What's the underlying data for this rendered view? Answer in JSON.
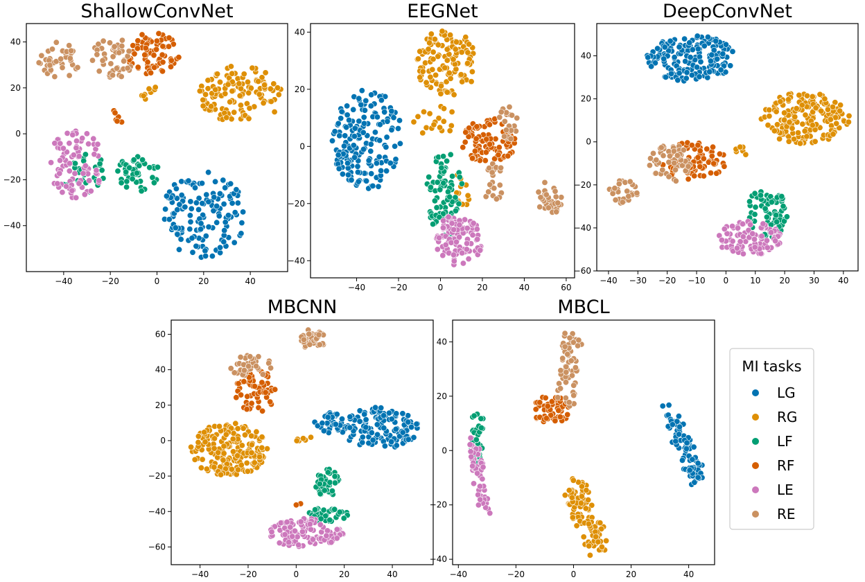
{
  "chart_data": [
    {
      "type": "scatter",
      "title": "ShallowConvNet",
      "xlim": [
        -56,
        56
      ],
      "ylim": [
        -60,
        48
      ],
      "xticks": [
        -40,
        -20,
        0,
        20,
        40
      ],
      "yticks": [
        -40,
        -20,
        0,
        20,
        40
      ],
      "clusters": [
        {
          "class": "LG",
          "shape": "blob",
          "cx": 20,
          "cy": -35,
          "rx": 18,
          "ry": 19,
          "n": 150,
          "seed": 11
        },
        {
          "class": "RG",
          "shape": "blob",
          "cx": 36,
          "cy": 17,
          "rx": 18,
          "ry": 13,
          "n": 120,
          "seed": 12
        },
        {
          "class": "RG",
          "shape": "blob",
          "cx": -3,
          "cy": 18,
          "rx": 4,
          "ry": 4,
          "n": 10,
          "seed": 13
        },
        {
          "class": "LF",
          "shape": "blob",
          "cx": -8,
          "cy": -17,
          "rx": 9,
          "ry": 8,
          "n": 45,
          "seed": 14
        },
        {
          "class": "LF",
          "shape": "blob",
          "cx": -32,
          "cy": -17,
          "rx": 10,
          "ry": 10,
          "n": 30,
          "seed": 15
        },
        {
          "class": "RF",
          "shape": "blob",
          "cx": -2,
          "cy": 35,
          "rx": 12,
          "ry": 9,
          "n": 70,
          "seed": 16
        },
        {
          "class": "RF",
          "shape": "line",
          "x1": -17,
          "y1": 10,
          "x2": -16,
          "y2": 4,
          "n": 6,
          "seed": 17
        },
        {
          "class": "LE",
          "shape": "blob",
          "cx": -35,
          "cy": -13,
          "rx": 12,
          "ry": 15,
          "n": 80,
          "seed": 18
        },
        {
          "class": "RE",
          "shape": "blob",
          "cx": -42,
          "cy": 32,
          "rx": 9,
          "ry": 8,
          "n": 40,
          "seed": 19
        },
        {
          "class": "RE",
          "shape": "blob",
          "cx": -19,
          "cy": 33,
          "rx": 9,
          "ry": 9,
          "n": 45,
          "seed": 20
        }
      ]
    },
    {
      "type": "scatter",
      "title": "EEGNet",
      "xlim": [
        -62,
        64
      ],
      "ylim": [
        -46,
        43
      ],
      "xticks": [
        -40,
        -20,
        0,
        20,
        40,
        60
      ],
      "yticks": [
        -40,
        -20,
        0,
        20,
        40
      ],
      "clusters": [
        {
          "class": "LG",
          "shape": "blob",
          "cx": -35,
          "cy": 2,
          "rx": 17,
          "ry": 18,
          "n": 170,
          "seed": 21
        },
        {
          "class": "RG",
          "shape": "blob",
          "cx": 3,
          "cy": 29,
          "rx": 15,
          "ry": 12,
          "n": 120,
          "seed": 22
        },
        {
          "class": "RG",
          "shape": "blob",
          "cx": -3,
          "cy": 9,
          "rx": 10,
          "ry": 6,
          "n": 18,
          "seed": 23
        },
        {
          "class": "RG",
          "shape": "blob",
          "cx": 10,
          "cy": -16,
          "rx": 4,
          "ry": 7,
          "n": 12,
          "seed": 24
        },
        {
          "class": "LF",
          "shape": "blob",
          "cx": 2,
          "cy": -17,
          "rx": 9,
          "ry": 15,
          "n": 80,
          "seed": 25
        },
        {
          "class": "RF",
          "shape": "blob",
          "cx": 23,
          "cy": 2,
          "rx": 13,
          "ry": 8,
          "n": 85,
          "seed": 26
        },
        {
          "class": "LE",
          "shape": "blob",
          "cx": 8,
          "cy": -33,
          "rx": 12,
          "ry": 9,
          "n": 110,
          "seed": 27
        },
        {
          "class": "RE",
          "shape": "blob",
          "cx": 32,
          "cy": 8,
          "rx": 5,
          "ry": 6,
          "n": 22,
          "seed": 28
        },
        {
          "class": "RE",
          "shape": "blob",
          "cx": 25,
          "cy": -12,
          "rx": 5,
          "ry": 10,
          "n": 22,
          "seed": 29
        },
        {
          "class": "RE",
          "shape": "blob",
          "cx": 52,
          "cy": -18,
          "rx": 6,
          "ry": 6,
          "n": 35,
          "seed": 30
        }
      ]
    },
    {
      "type": "scatter",
      "title": "DeepConvNet",
      "xlim": [
        -44,
        45
      ],
      "ylim": [
        -60,
        55
      ],
      "xticks": [
        -40,
        -30,
        -20,
        -10,
        0,
        10,
        20,
        30,
        40
      ],
      "yticks": [
        -60,
        -40,
        -20,
        0,
        20,
        40
      ],
      "clusters": [
        {
          "class": "LG",
          "shape": "blob",
          "cx": -12,
          "cy": 39,
          "rx": 15,
          "ry": 11,
          "n": 160,
          "seed": 31
        },
        {
          "class": "RG",
          "shape": "blob",
          "cx": 27,
          "cy": 11,
          "rx": 15,
          "ry": 12,
          "n": 170,
          "seed": 32
        },
        {
          "class": "RG",
          "shape": "blob",
          "cx": 6,
          "cy": -4,
          "rx": 3,
          "ry": 2,
          "n": 6,
          "seed": 33
        },
        {
          "class": "LF",
          "shape": "blob",
          "cx": 14,
          "cy": -33,
          "rx": 7,
          "ry": 12,
          "n": 70,
          "seed": 34
        },
        {
          "class": "RF",
          "shape": "blob",
          "cx": -11,
          "cy": -9,
          "rx": 11,
          "ry": 9,
          "n": 80,
          "seed": 35
        },
        {
          "class": "LE",
          "shape": "blob",
          "cx": 8,
          "cy": -45,
          "rx": 11,
          "ry": 8,
          "n": 90,
          "seed": 36
        },
        {
          "class": "RE",
          "shape": "blob",
          "cx": -19,
          "cy": -10,
          "rx": 7,
          "ry": 9,
          "n": 50,
          "seed": 37
        },
        {
          "class": "RE",
          "shape": "blob",
          "cx": -35,
          "cy": -23,
          "rx": 5,
          "ry": 6,
          "n": 30,
          "seed": 38
        }
      ]
    },
    {
      "type": "scatter",
      "title": "MBCNN",
      "xlim": [
        -52,
        57
      ],
      "ylim": [
        -70,
        68
      ],
      "xticks": [
        -40,
        -20,
        0,
        20,
        40
      ],
      "yticks": [
        -60,
        -40,
        -20,
        0,
        20,
        40,
        60
      ],
      "clusters": [
        {
          "class": "LG",
          "shape": "blob",
          "cx": 35,
          "cy": 7,
          "rx": 16,
          "ry": 12,
          "n": 130,
          "seed": 41
        },
        {
          "class": "LG",
          "shape": "blob",
          "cx": 14,
          "cy": 10,
          "rx": 7,
          "ry": 6,
          "n": 30,
          "seed": 42
        },
        {
          "class": "RG",
          "shape": "blob",
          "cx": -28,
          "cy": -5,
          "rx": 16,
          "ry": 15,
          "n": 190,
          "seed": 43
        },
        {
          "class": "RG",
          "shape": "blob",
          "cx": 3,
          "cy": 1,
          "rx": 4,
          "ry": 2,
          "n": 6,
          "seed": 44
        },
        {
          "class": "LF",
          "shape": "blob",
          "cx": 13,
          "cy": -24,
          "rx": 5,
          "ry": 8,
          "n": 40,
          "seed": 45
        },
        {
          "class": "LF",
          "shape": "blob",
          "cx": 13,
          "cy": -42,
          "rx": 9,
          "ry": 4,
          "n": 35,
          "seed": 46
        },
        {
          "class": "RF",
          "shape": "blob",
          "cx": -17,
          "cy": 28,
          "rx": 9,
          "ry": 12,
          "n": 65,
          "seed": 47
        },
        {
          "class": "RF",
          "shape": "line",
          "x1": 0,
          "y1": -38,
          "x2": 2,
          "y2": -34,
          "n": 3,
          "seed": 48
        },
        {
          "class": "LE",
          "shape": "blob",
          "cx": 4,
          "cy": -52,
          "rx": 16,
          "ry": 8,
          "n": 110,
          "seed": 49
        },
        {
          "class": "RE",
          "shape": "blob",
          "cx": -19,
          "cy": 42,
          "rx": 9,
          "ry": 6,
          "n": 40,
          "seed": 50
        },
        {
          "class": "RE",
          "shape": "blob",
          "cx": 7,
          "cy": 57,
          "rx": 5,
          "ry": 6,
          "n": 40,
          "seed": 51
        }
      ]
    },
    {
      "type": "scatter",
      "title": "MBCL",
      "xlim": [
        -42,
        49
      ],
      "ylim": [
        -42,
        48
      ],
      "xticks": [
        -40,
        -20,
        0,
        20,
        40
      ],
      "yticks": [
        -40,
        -20,
        0,
        20,
        40
      ],
      "clusters": [
        {
          "class": "LG",
          "shape": "line",
          "x1": 33,
          "y1": 14,
          "x2": 44,
          "y2": -12,
          "n": 80,
          "seed": 61,
          "spread": 3
        },
        {
          "class": "RG",
          "shape": "line",
          "x1": 0,
          "y1": -12,
          "x2": 8,
          "y2": -35,
          "n": 100,
          "seed": 62,
          "spread": 4
        },
        {
          "class": "LF",
          "shape": "line",
          "x1": -33,
          "y1": 13,
          "x2": -34,
          "y2": -6,
          "n": 40,
          "seed": 63,
          "spread": 2
        },
        {
          "class": "RF",
          "shape": "blob",
          "cx": -8,
          "cy": 15,
          "rx": 7,
          "ry": 5,
          "n": 50,
          "seed": 64
        },
        {
          "class": "LE",
          "shape": "line",
          "x1": -35,
          "y1": 4,
          "x2": -31,
          "y2": -22,
          "n": 55,
          "seed": 65,
          "spread": 2
        },
        {
          "class": "RE",
          "shape": "line",
          "x1": 0,
          "y1": 43,
          "x2": -3,
          "y2": 18,
          "n": 60,
          "seed": 66,
          "spread": 3
        }
      ]
    }
  ],
  "legend": {
    "title": "MI tasks",
    "items": [
      {
        "label": "LG",
        "color": "#0173b2"
      },
      {
        "label": "RG",
        "color": "#de8f05"
      },
      {
        "label": "LF",
        "color": "#029e73"
      },
      {
        "label": "RF",
        "color": "#d55e00"
      },
      {
        "label": "LE",
        "color": "#cc78bc"
      },
      {
        "label": "RE",
        "color": "#ca9161"
      }
    ]
  }
}
